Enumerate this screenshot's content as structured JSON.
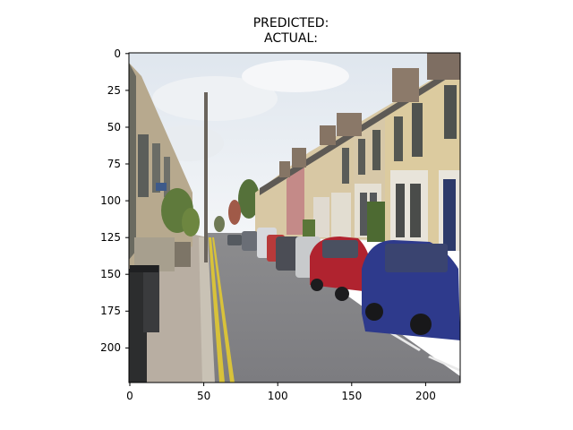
{
  "figure": {
    "title_line1": "PREDICTED:",
    "title_line2": "ACTUAL:"
  },
  "image": {
    "description_icon": "street-photo",
    "xlim": [
      0,
      224
    ],
    "ylim": [
      224,
      0
    ],
    "x_ticks": [
      "0",
      "50",
      "100",
      "150",
      "200"
    ],
    "y_ticks": [
      "0",
      "25",
      "50",
      "75",
      "100",
      "125",
      "150",
      "175",
      "200"
    ]
  }
}
